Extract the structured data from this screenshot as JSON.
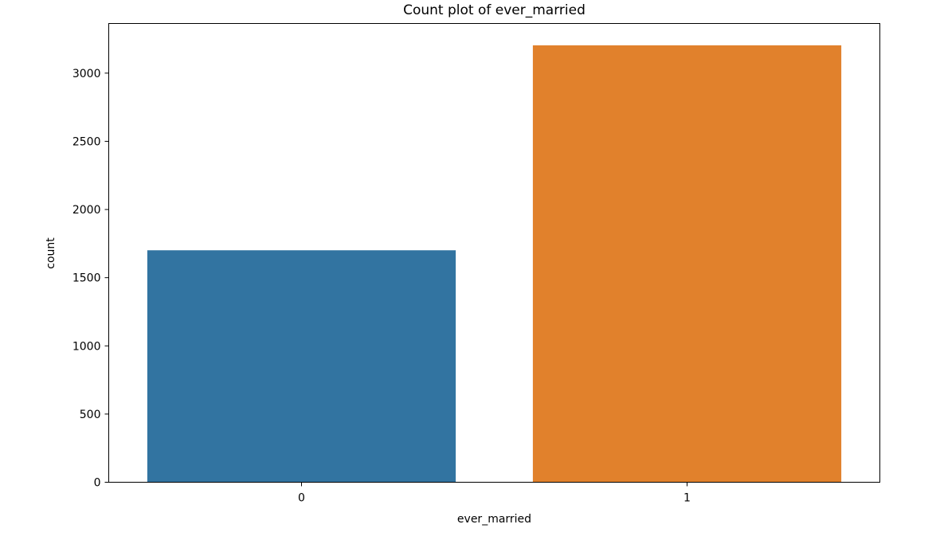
{
  "chart_data": {
    "type": "bar",
    "title": "Count plot of ever_married",
    "xlabel": "ever_married",
    "ylabel": "count",
    "categories": [
      "0",
      "1"
    ],
    "values": [
      1701,
      3204
    ],
    "colors": [
      "#3274a1",
      "#e1812c"
    ],
    "ylim": [
      0,
      3364
    ],
    "yticks": [
      0,
      500,
      1000,
      1500,
      2000,
      2500,
      3000
    ],
    "grid": false,
    "legend": "none"
  }
}
